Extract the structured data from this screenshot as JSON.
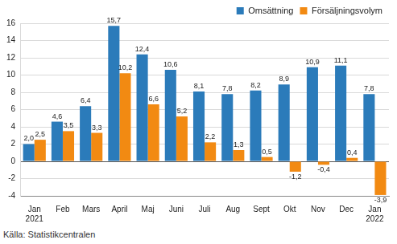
{
  "chart_data": {
    "type": "bar",
    "categories": [
      "Jan\n2021",
      "Feb",
      "Mars",
      "April",
      "Maj",
      "Juni",
      "Juli",
      "Aug",
      "Sept",
      "Okt",
      "Nov",
      "Dec",
      "Jan\n2022"
    ],
    "series": [
      {
        "name": "Omsättning",
        "color": "#2b7bba",
        "values": [
          2.0,
          4.6,
          6.4,
          15.7,
          12.4,
          10.6,
          8.1,
          7.8,
          8.2,
          8.9,
          10.9,
          11.1,
          7.8
        ],
        "value_labels": [
          "2,0",
          "4,6",
          "6,4",
          "15,7",
          "12,4",
          "10,6",
          "8,1",
          "7,8",
          "8,2",
          "8,9",
          "10,9",
          "11,1",
          "7,8"
        ]
      },
      {
        "name": "Försäljningsvolym",
        "color": "#f28a12",
        "values": [
          2.5,
          3.5,
          3.3,
          10.2,
          6.6,
          5.2,
          2.2,
          1.3,
          0.5,
          -1.2,
          -0.4,
          0.4,
          -3.9
        ],
        "value_labels": [
          "2,5",
          "3,5",
          "3,3",
          "10,2",
          "6,6",
          "5,2",
          "2,2",
          "1,3",
          "0,5",
          "-1,2",
          "-0,4",
          "0,4",
          "-3,9"
        ]
      }
    ],
    "ylim": [
      -4,
      16
    ],
    "yticks": [
      -4,
      -2,
      0,
      2,
      4,
      6,
      8,
      10,
      12,
      14,
      16
    ],
    "grid": true,
    "legend": "top-right",
    "data_labels": true,
    "source": "Källa: Statistikcentralen"
  }
}
